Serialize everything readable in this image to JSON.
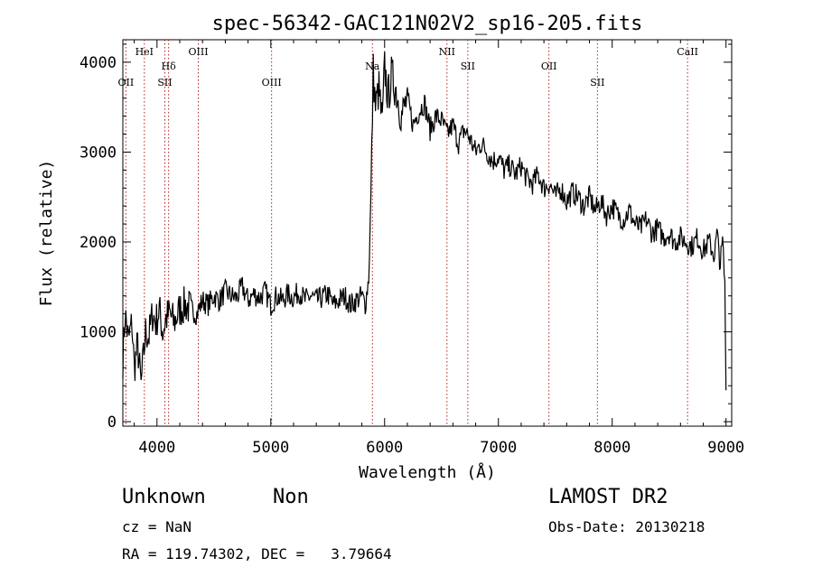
{
  "chart_data": {
    "type": "line",
    "title": "spec-56342-GAC121N02V2_sp16-205.fits",
    "xlabel": "Wavelength (Å)",
    "ylabel": "Flux (relative)",
    "xlim": [
      3700,
      9050
    ],
    "ylim": [
      -50,
      4250
    ],
    "xticks": [
      4000,
      5000,
      6000,
      7000,
      8000,
      9000
    ],
    "yticks": [
      0,
      1000,
      2000,
      3000,
      4000
    ],
    "xtick_labels": [
      "4000",
      "5000",
      "6000",
      "7000",
      "8000",
      "9000"
    ],
    "ytick_labels": [
      "0",
      "1000",
      "2000",
      "3000",
      "4000"
    ],
    "grid": false,
    "line_color": "#000000",
    "marker_color": "#b22222",
    "series": [
      {
        "x": [
          3700,
          3720,
          3750,
          3780,
          3800,
          3830,
          3860,
          3880,
          3900,
          3930,
          3960,
          3990,
          4020,
          4050,
          4080,
          4110,
          4150,
          4200,
          4250,
          4300,
          4350,
          4400,
          4450,
          4500,
          4550,
          4600,
          4650,
          4700,
          4750,
          4800,
          4850,
          4900,
          4950,
          5000,
          5050,
          5100,
          5150,
          5200,
          5250,
          5300,
          5350,
          5400,
          5450,
          5500,
          5550,
          5600,
          5650,
          5700,
          5750,
          5800,
          5830,
          5860,
          5880,
          5900,
          5920,
          5950,
          5980,
          6000,
          6030,
          6060,
          6100,
          6150,
          6200,
          6250,
          6300,
          6350,
          6400,
          6450,
          6500,
          6550,
          6600,
          6650,
          6700,
          6750,
          6800,
          6850,
          6900,
          6950,
          7000,
          7050,
          7100,
          7150,
          7200,
          7250,
          7300,
          7350,
          7400,
          7450,
          7500,
          7550,
          7600,
          7650,
          7700,
          7750,
          7800,
          7850,
          7900,
          7950,
          8000,
          8050,
          8100,
          8150,
          8200,
          8250,
          8300,
          8350,
          8400,
          8450,
          8500,
          8550,
          8600,
          8650,
          8700,
          8750,
          8800,
          8850,
          8900,
          8920,
          8950,
          8970,
          8990,
          9000
        ],
        "y": [
          700,
          1200,
          900,
          1100,
          600,
          850,
          400,
          700,
          1000,
          950,
          1200,
          1100,
          1250,
          1000,
          1150,
          1200,
          1100,
          1250,
          1300,
          1250,
          1200,
          1350,
          1300,
          1400,
          1350,
          1450,
          1400,
          1380,
          1500,
          1350,
          1420,
          1380,
          1450,
          1300,
          1400,
          1350,
          1420,
          1380,
          1450,
          1350,
          1400,
          1350,
          1380,
          1420,
          1300,
          1350,
          1400,
          1300,
          1350,
          1400,
          1300,
          1600,
          2500,
          3900,
          3500,
          3700,
          3300,
          3950,
          3600,
          3850,
          3700,
          3400,
          3600,
          3300,
          3450,
          3550,
          3250,
          3400,
          3350,
          3200,
          3300,
          3100,
          3250,
          3150,
          3000,
          3100,
          3000,
          2900,
          2950,
          2800,
          2850,
          2750,
          2850,
          2700,
          2650,
          2750,
          2600,
          2650,
          2500,
          2600,
          2450,
          2550,
          2500,
          2400,
          2500,
          2350,
          2450,
          2300,
          2400,
          2300,
          2250,
          2350,
          2200,
          2150,
          2250,
          2100,
          2150,
          2050,
          2100,
          2000,
          2050,
          2000,
          1950,
          2050,
          1900,
          2000,
          1850,
          2100,
          1750,
          2000,
          1500,
          350
        ]
      }
    ],
    "line_markers": [
      {
        "name": "OII",
        "x": 3727,
        "row": 3
      },
      {
        "name": "HeI",
        "x": 3889,
        "row": 1
      },
      {
        "name": "SII",
        "x": 4069,
        "row": 3
      },
      {
        "name": "Hδ",
        "x": 4102,
        "row": 2
      },
      {
        "name": "OIII",
        "x": 4363,
        "row": 1
      },
      {
        "name": "OIII",
        "x": 5007,
        "row": 3
      },
      {
        "name": "Na",
        "x": 5893,
        "row": 2
      },
      {
        "name": "NII",
        "x": 6548,
        "row": 1
      },
      {
        "name": "SII",
        "x": 6731,
        "row": 2
      },
      {
        "name": "OII",
        "x": 7444,
        "row": 2
      },
      {
        "name": "SII",
        "x": 7870,
        "row": 3
      },
      {
        "name": "CaII",
        "x": 8662,
        "row": 1
      }
    ]
  },
  "info": {
    "class": "Unknown",
    "subclass": "Non",
    "survey": "LAMOST DR2",
    "cz": "cz = NaN",
    "obs_date": "Obs-Date: 20130218",
    "coords": "RA = 119.74302, DEC =   3.79664"
  }
}
